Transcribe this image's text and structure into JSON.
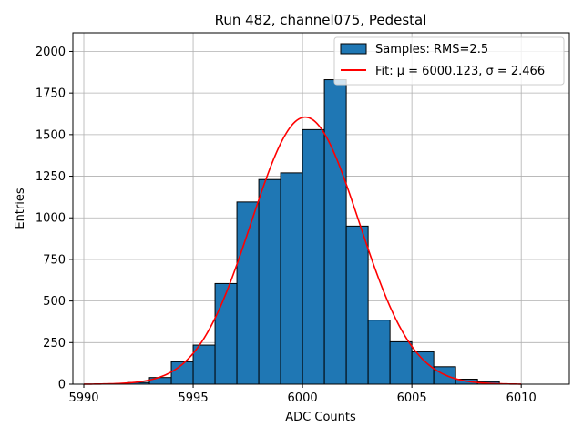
{
  "chart_data": {
    "type": "bar",
    "title": "Run 482, channel075, Pedestal",
    "xlabel": "ADC Counts",
    "ylabel": "Entries",
    "xlim": [
      5989.5,
      6012.2
    ],
    "ylim": [
      0,
      2112
    ],
    "xticks": [
      5990,
      5995,
      6000,
      6005,
      6010
    ],
    "yticks": [
      0,
      250,
      500,
      750,
      1000,
      1250,
      1500,
      1750,
      2000
    ],
    "grid": true,
    "legend_position": "top-right",
    "bin_edges": [
      5992,
      5993,
      5994,
      5995,
      5996,
      5997,
      5998,
      5999,
      6000,
      6001,
      6002,
      6003,
      6004,
      6005,
      6006,
      6007,
      6008,
      6009
    ],
    "counts": [
      10,
      40,
      135,
      235,
      605,
      1095,
      1230,
      1270,
      1530,
      1830,
      950,
      385,
      255,
      195,
      105,
      30,
      15
    ],
    "series": [
      {
        "name": "Samples: RMS=2.5",
        "kind": "histogram",
        "color": "#1f77b4"
      },
      {
        "name": "Fit: μ = 6000.123, σ = 2.466",
        "kind": "gaussian_fit",
        "color": "#ff0000",
        "mu": 6000.123,
        "sigma": 2.466,
        "amplitude": 1605,
        "x_range": [
          5990,
          6010
        ]
      }
    ]
  }
}
